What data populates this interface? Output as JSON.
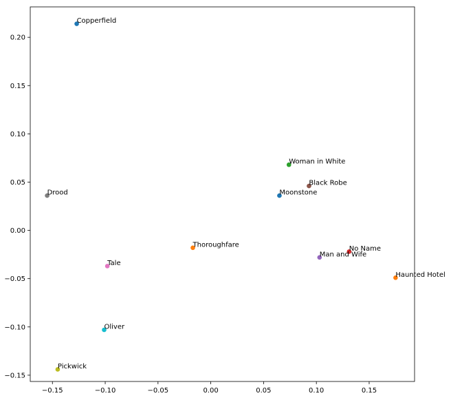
{
  "chart_data": {
    "type": "scatter",
    "title": "",
    "xlabel": "",
    "ylabel": "",
    "xlim": [
      -0.171,
      0.193
    ],
    "ylim": [
      -0.1565,
      0.2315
    ],
    "xticks": [
      -0.15,
      -0.1,
      -0.05,
      0.0,
      0.05,
      0.1,
      0.15
    ],
    "xtick_labels": [
      "−0.15",
      "−0.10",
      "−0.05",
      "0.00",
      "0.05",
      "0.10",
      "0.15"
    ],
    "yticks": [
      -0.15,
      -0.1,
      -0.05,
      0.0,
      0.05,
      0.1,
      0.15,
      0.2
    ],
    "ytick_labels": [
      "−0.15",
      "−0.10",
      "−0.05",
      "0.00",
      "0.05",
      "0.10",
      "0.15",
      "0.20"
    ],
    "grid": false,
    "points": [
      {
        "label": "Copperfield",
        "x": -0.127,
        "y": 0.214,
        "color": "#1f77b4"
      },
      {
        "label": "Woman in White",
        "x": 0.074,
        "y": 0.068,
        "color": "#2ca02c"
      },
      {
        "label": "Black Robe",
        "x": 0.093,
        "y": 0.046,
        "color": "#8c564b"
      },
      {
        "label": "Moonstone",
        "x": 0.065,
        "y": 0.036,
        "color": "#1f77b4"
      },
      {
        "label": "Drood",
        "x": -0.155,
        "y": 0.036,
        "color": "#7f7f7f"
      },
      {
        "label": "Thoroughfare",
        "x": -0.017,
        "y": -0.018,
        "color": "#ff7f0e"
      },
      {
        "label": "No Name",
        "x": 0.131,
        "y": -0.022,
        "color": "#d62728"
      },
      {
        "label": "Man and Wife",
        "x": 0.103,
        "y": -0.028,
        "color": "#9467bd"
      },
      {
        "label": "Tale",
        "x": -0.098,
        "y": -0.037,
        "color": "#e377c2"
      },
      {
        "label": "Haunted Hotel",
        "x": 0.175,
        "y": -0.049,
        "color": "#ff7f0e"
      },
      {
        "label": "Oliver",
        "x": -0.101,
        "y": -0.103,
        "color": "#17becf"
      },
      {
        "label": "Pickwick",
        "x": -0.145,
        "y": -0.144,
        "color": "#bcbd22"
      }
    ]
  }
}
